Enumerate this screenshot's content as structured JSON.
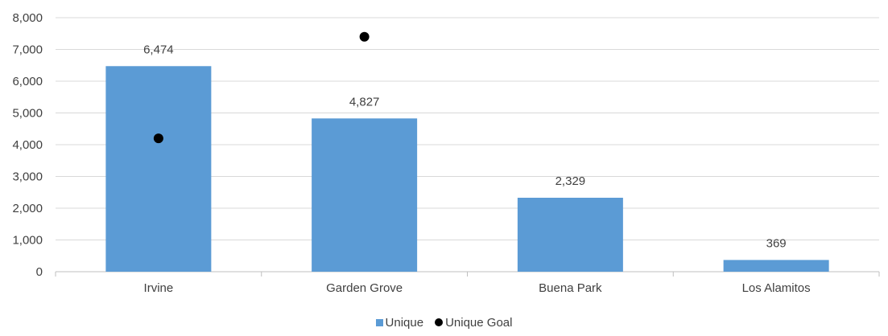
{
  "chart_data": {
    "type": "bar",
    "categories": [
      "Irvine",
      "Garden Grove",
      "Buena Park",
      "Los Alamitos"
    ],
    "series": [
      {
        "name": "Unique",
        "kind": "bar",
        "values": [
          6474,
          4827,
          2329,
          369
        ],
        "color": "#5B9BD5"
      },
      {
        "name": "Unique Goal",
        "kind": "marker",
        "values": [
          4200,
          7400,
          null,
          null
        ],
        "color": "#000000"
      }
    ],
    "data_labels": [
      "6,474",
      "4,827",
      "2,329",
      "369"
    ],
    "y_ticks": [
      0,
      1000,
      2000,
      3000,
      4000,
      5000,
      6000,
      7000,
      8000
    ],
    "y_tick_labels": [
      "0",
      "1,000",
      "2,000",
      "3,000",
      "4,000",
      "5,000",
      "6,000",
      "7,000",
      "8,000"
    ],
    "ylim": [
      0,
      8000
    ],
    "grid": true,
    "legend_position": "bottom",
    "title": "",
    "xlabel": "",
    "ylabel": ""
  },
  "legend": {
    "unique_label": "Unique",
    "goal_label": "Unique Goal"
  }
}
